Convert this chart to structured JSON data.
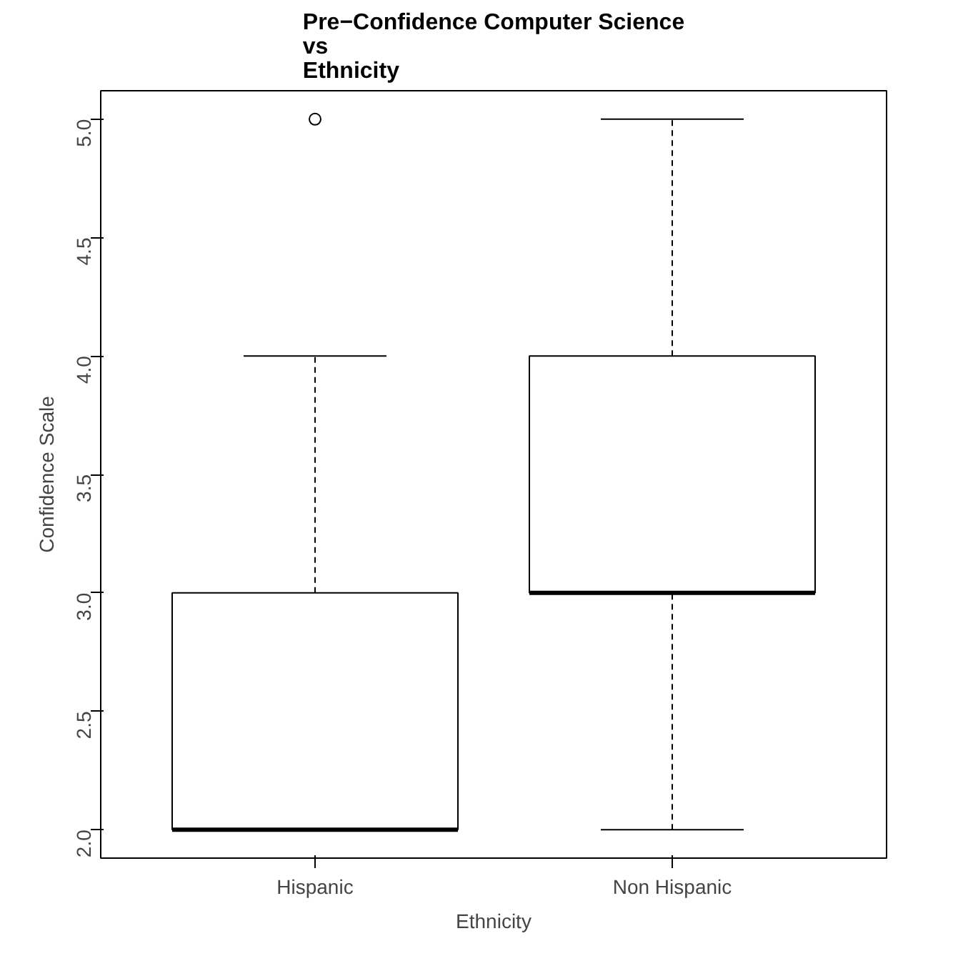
{
  "chart_data": {
    "type": "box",
    "title": "Pre−Confidence Computer Science\nvs\nEthnicity",
    "xlabel": "Ethnicity",
    "ylabel": "Confidence Scale",
    "categories": [
      "Hispanic",
      "Non Hispanic"
    ],
    "boxes": [
      {
        "low": 2,
        "q1": 2,
        "median": 2,
        "q3": 3,
        "high": 4,
        "outliers": [
          5
        ]
      },
      {
        "low": 2,
        "q1": 3,
        "median": 3,
        "q3": 4,
        "high": 5
      }
    ],
    "color": "#ffffff",
    "ylim": [
      1.88,
      5.12
    ],
    "yticks": [
      {
        "value": 2,
        "label": "2.0"
      },
      {
        "value": 2.5,
        "label": "2.5"
      },
      {
        "value": 3,
        "label": "3.0"
      },
      {
        "value": 3.5,
        "label": "3.5"
      },
      {
        "value": 4,
        "label": "4.0"
      },
      {
        "value": 4.5,
        "label": "4.5"
      },
      {
        "value": 5,
        "label": "5.0"
      }
    ],
    "grid": false,
    "marker": "circle"
  }
}
